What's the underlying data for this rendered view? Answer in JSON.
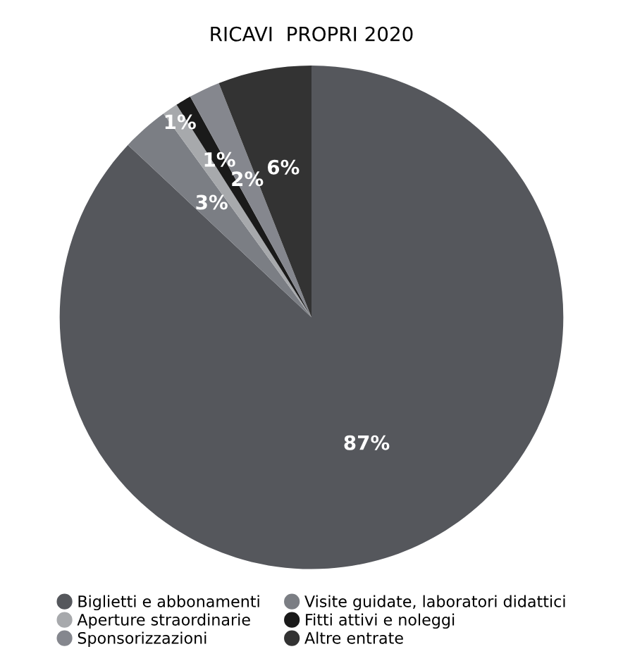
{
  "chart_data": {
    "type": "pie",
    "title": "RICAVI  PROPRI 2020",
    "categories": [
      "Biglietti e abbonamenti",
      "Visite guidate, laboratori didattici",
      "Aperture straordinarie",
      "Fitti attivi e noleggi",
      "Sponsorizzazioni",
      "Altre entrate"
    ],
    "values": [
      87,
      3,
      1,
      1,
      2,
      6
    ],
    "colors": [
      "#55575c",
      "#7b7e84",
      "#a7a9ac",
      "#1a1a1a",
      "#85878e",
      "#333333"
    ],
    "value_labels": [
      "87%",
      "3%",
      "1%",
      "1%",
      "2%",
      "6%"
    ],
    "legend": "bottom"
  }
}
